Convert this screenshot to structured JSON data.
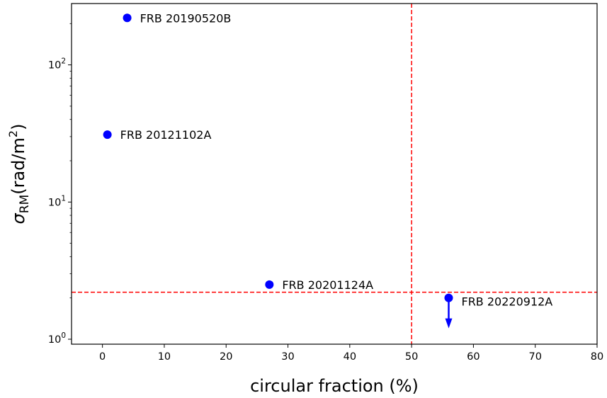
{
  "chart_data": {
    "type": "scatter",
    "title": "",
    "xlabel": "circular fraction (%)",
    "ylabel": "σ",
    "ylabel_sub": "RM",
    "ylabel_unit": "(rad/m",
    "ylabel_unit_sup": "2",
    "ylabel_unit_close": ")",
    "xlim": [
      -5,
      80
    ],
    "ylim": [
      0.92,
      280
    ],
    "yscale": "log",
    "grid": false,
    "legend": "none",
    "x_ticks": [
      0,
      10,
      20,
      30,
      40,
      50,
      60,
      70,
      80
    ],
    "x_tick_labels": [
      "0",
      "10",
      "20",
      "30",
      "40",
      "50",
      "60",
      "70",
      "80"
    ],
    "y_ticks": [
      {
        "value": 1,
        "base": "10",
        "exp": "0"
      },
      {
        "value": 10,
        "base": "10",
        "exp": "1"
      },
      {
        "value": 100,
        "base": "10",
        "exp": "2"
      }
    ],
    "points": [
      {
        "x": 4,
        "y": 220,
        "label": "FRB 20190520B",
        "upper_limit": false
      },
      {
        "x": 0.8,
        "y": 31,
        "label": "FRB 20121102A",
        "upper_limit": false
      },
      {
        "x": 27,
        "y": 2.5,
        "label": "FRB 20201124A",
        "upper_limit": false
      },
      {
        "x": 56,
        "y": 2.0,
        "label": "FRB 20220912A",
        "upper_limit": true
      }
    ],
    "reference_lines": {
      "vertical_x": 50,
      "horizontal_y": 2.2
    },
    "colors": {
      "points": "#0000ff",
      "reference": "#ff0000",
      "axes": "#000000"
    }
  }
}
